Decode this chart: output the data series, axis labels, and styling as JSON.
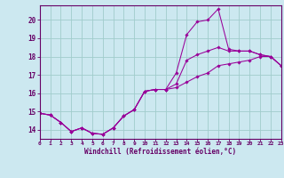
{
  "xlabel": "Windchill (Refroidissement éolien,°C)",
  "bg_color": "#cce8f0",
  "grid_color": "#a0cccc",
  "line_color": "#990099",
  "x_data": [
    0,
    1,
    2,
    3,
    4,
    5,
    6,
    7,
    8,
    9,
    10,
    11,
    12,
    13,
    14,
    15,
    16,
    17,
    18,
    19,
    20,
    21,
    22,
    23
  ],
  "y1_data": [
    14.9,
    14.8,
    14.4,
    13.9,
    14.1,
    13.8,
    13.75,
    14.1,
    14.75,
    15.1,
    16.1,
    16.2,
    16.2,
    17.1,
    19.2,
    19.9,
    20.0,
    20.6,
    18.4,
    18.3,
    18.3,
    18.1,
    18.0,
    17.5
  ],
  "y2_data": [
    14.9,
    14.8,
    14.4,
    13.9,
    14.1,
    13.8,
    13.75,
    14.1,
    14.75,
    15.1,
    16.1,
    16.2,
    16.2,
    16.5,
    17.8,
    18.1,
    18.3,
    18.5,
    18.3,
    18.3,
    18.3,
    18.1,
    18.0,
    17.5
  ],
  "y3_data": [
    14.9,
    14.8,
    14.4,
    13.9,
    14.1,
    13.8,
    13.75,
    14.1,
    14.75,
    15.1,
    16.1,
    16.2,
    16.2,
    16.3,
    16.6,
    16.9,
    17.1,
    17.5,
    17.6,
    17.7,
    17.8,
    18.0,
    18.0,
    17.5
  ],
  "xlim": [
    0,
    23
  ],
  "ylim": [
    13.5,
    20.8
  ],
  "yticks": [
    14,
    15,
    16,
    17,
    18,
    19,
    20
  ],
  "xticks": [
    0,
    1,
    2,
    3,
    4,
    5,
    6,
    7,
    8,
    9,
    10,
    11,
    12,
    13,
    14,
    15,
    16,
    17,
    18,
    19,
    20,
    21,
    22,
    23
  ]
}
